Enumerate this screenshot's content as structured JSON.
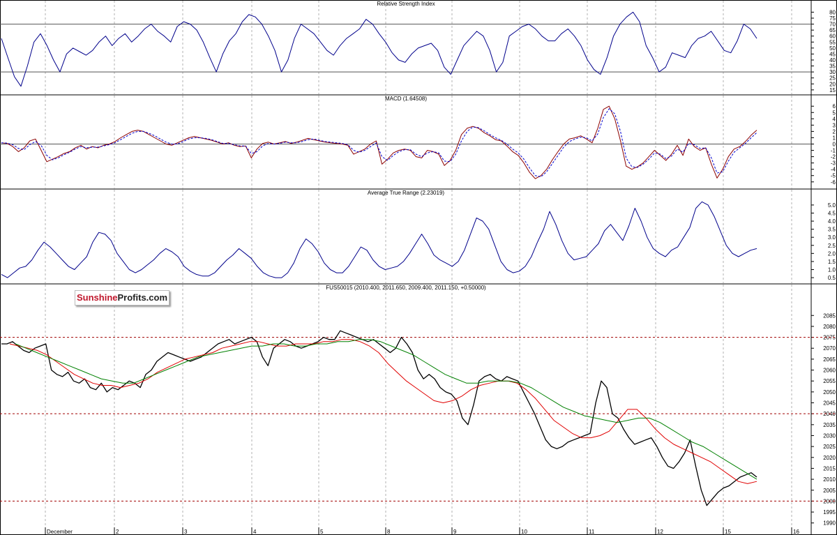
{
  "brand": {
    "part1": "Sunshine",
    "part2": "Profits.com"
  },
  "colors": {
    "rsi": "#00008b",
    "macd": "#8b0000",
    "signal": "#0000cd",
    "atr": "#00008b",
    "sma_fast": "#008000",
    "sma_slow": "#e00000",
    "candles": "#000000",
    "support_lines": "#a00000"
  },
  "chart_data": [
    {
      "type": "line",
      "title": "Relative Strength Index",
      "y_ticks": [
        "80",
        "75",
        "70",
        "65",
        "60",
        "55",
        "50",
        "45",
        "40",
        "35",
        "30",
        "25",
        "20",
        "15"
      ],
      "ylim": [
        12,
        82
      ],
      "reference_levels": [
        70,
        30
      ],
      "series": [
        {
          "values": [
            58,
            42,
            26,
            18,
            35,
            55,
            62,
            52,
            40,
            30,
            45,
            50,
            47,
            44,
            48,
            55,
            60,
            52,
            58,
            62,
            55,
            60,
            66,
            70,
            64,
            60,
            55,
            68,
            72,
            70,
            65,
            55,
            42,
            30,
            45,
            56,
            62,
            72,
            78,
            76,
            70,
            60,
            48,
            30,
            40,
            58,
            70,
            66,
            62,
            55,
            48,
            44,
            52,
            58,
            62,
            66,
            74,
            70,
            62,
            55,
            46,
            40,
            38,
            45,
            50,
            52,
            54,
            48,
            34,
            28,
            40,
            52,
            58,
            64,
            60,
            48,
            30,
            38,
            60,
            64,
            68,
            70,
            66,
            60,
            56,
            56,
            62,
            66,
            60,
            52,
            40,
            32,
            28,
            42,
            60,
            70,
            76,
            80,
            72,
            52,
            42,
            30,
            34,
            46,
            44,
            42,
            52,
            58,
            60,
            64,
            56,
            48,
            46,
            56,
            70,
            66,
            58
          ]
        }
      ]
    },
    {
      "type": "line",
      "title": "MACD (1.64508)",
      "y_ticks": [
        "6",
        "5",
        "4",
        "3",
        "2",
        "1",
        "0",
        "-1",
        "-2",
        "-3",
        "-4",
        "-5",
        "-6"
      ],
      "ylim": [
        -6.8,
        6.8
      ],
      "reference_levels": [
        0
      ],
      "series": [
        {
          "values": [
            0.2,
            0.1,
            -0.4,
            -1.2,
            -0.6,
            0.5,
            0.8,
            -1.0,
            -2.8,
            -2.4,
            -2.0,
            -1.5,
            -1.2,
            -0.6,
            -0.2,
            -0.8,
            -0.4,
            -0.6,
            -0.2,
            0.0,
            0.4,
            1.0,
            1.5,
            2.0,
            2.2,
            2.0,
            1.5,
            1.0,
            0.5,
            0.0,
            -0.2,
            0.2,
            0.6,
            1.0,
            1.2,
            1.0,
            0.8,
            0.6,
            0.3,
            0.0,
            0.2,
            -0.2,
            -0.4,
            -0.3,
            -2.2,
            -0.8,
            0.1,
            0.3,
            0.0,
            0.2,
            0.4,
            0.1,
            0.3,
            0.6,
            0.9,
            0.7,
            0.5,
            0.3,
            0.2,
            0.1,
            0.0,
            -0.2,
            -1.6,
            -1.2,
            -0.8,
            0.0,
            0.5,
            -3.2,
            -2.4,
            -1.4,
            -1.0,
            -0.8,
            -1.0,
            -2.0,
            -2.2,
            -1.0,
            -1.2,
            -1.6,
            -3.4,
            -2.6,
            -1.0,
            1.5,
            2.5,
            2.8,
            2.5,
            1.8,
            1.3,
            0.7,
            0.5,
            -0.3,
            -1.2,
            -1.8,
            -3.0,
            -4.5,
            -5.5,
            -5.0,
            -4.0,
            -2.5,
            -1.2,
            0.0,
            0.8,
            1.0,
            1.3,
            0.8,
            0.2,
            2.5,
            5.5,
            6.0,
            4.0,
            0.5,
            -3.5,
            -4.0,
            -3.6,
            -3.0,
            -2.0,
            -1.0,
            -1.8,
            -2.6,
            -1.6,
            -0.2,
            -1.8,
            0.8,
            -0.4,
            -1.0,
            -0.6,
            -3.2,
            -5.4,
            -4.0,
            -2.0,
            -0.8,
            -0.4,
            0.4,
            1.4,
            2.2
          ]
        },
        {
          "values": [
            0.2,
            0.15,
            -0.1,
            -0.7,
            -0.9,
            -0.1,
            0.4,
            -0.2,
            -1.8,
            -2.5,
            -2.2,
            -1.7,
            -1.3,
            -0.8,
            -0.4,
            -0.6,
            -0.5,
            -0.5,
            -0.3,
            -0.1,
            0.2,
            0.7,
            1.2,
            1.7,
            2.0,
            2.0,
            1.7,
            1.3,
            0.8,
            0.3,
            0.0,
            0.0,
            0.4,
            0.8,
            1.0,
            1.0,
            0.9,
            0.7,
            0.4,
            0.1,
            0.1,
            -0.1,
            -0.3,
            -0.3,
            -1.5,
            -1.2,
            -0.3,
            0.1,
            0.0,
            0.1,
            0.3,
            0.2,
            0.2,
            0.4,
            0.7,
            0.8,
            0.6,
            0.4,
            0.3,
            0.2,
            0.1,
            -0.1,
            -1.0,
            -1.3,
            -1.0,
            -0.4,
            0.2,
            -2.0,
            -2.6,
            -1.8,
            -1.2,
            -0.9,
            -0.9,
            -1.6,
            -2.0,
            -1.4,
            -1.2,
            -1.4,
            -2.7,
            -2.8,
            -1.6,
            0.5,
            2.0,
            2.7,
            2.6,
            2.1,
            1.5,
            1.0,
            0.6,
            0.0,
            -0.8,
            -1.4,
            -2.4,
            -3.8,
            -5.0,
            -5.2,
            -4.4,
            -3.1,
            -1.8,
            -0.5,
            0.4,
            0.8,
            1.1,
            1.0,
            0.5,
            1.6,
            4.2,
            5.6,
            4.8,
            2.0,
            -2.2,
            -3.6,
            -3.7,
            -3.2,
            -2.4,
            -1.4,
            -1.6,
            -2.3,
            -1.9,
            -0.8,
            -1.3,
            0.1,
            -0.1,
            -0.7,
            -0.6,
            -2.2,
            -4.6,
            -4.4,
            -2.7,
            -1.3,
            -0.6,
            0.1,
            1.0,
            1.8
          ]
        }
      ]
    },
    {
      "type": "line",
      "title": "Average True Range (2.23019)",
      "y_ticks": [
        "5.0",
        "4.5",
        "4.0",
        "3.5",
        "3.0",
        "2.5",
        "2.0",
        "1.5",
        "1.0",
        "0.5"
      ],
      "ylim": [
        0.2,
        5.6
      ],
      "series": [
        {
          "values": [
            0.7,
            0.5,
            0.8,
            1.1,
            1.2,
            1.6,
            2.2,
            2.7,
            2.4,
            2.0,
            1.6,
            1.2,
            1.0,
            1.4,
            1.8,
            2.7,
            3.3,
            3.2,
            2.8,
            2.0,
            1.5,
            1.0,
            0.8,
            1.0,
            1.3,
            1.6,
            2.0,
            2.3,
            2.1,
            1.8,
            1.2,
            0.9,
            0.7,
            0.6,
            0.6,
            0.8,
            1.2,
            1.6,
            1.9,
            2.3,
            2.0,
            1.7,
            1.2,
            0.8,
            0.6,
            0.5,
            0.5,
            0.8,
            1.4,
            2.3,
            2.9,
            2.6,
            2.1,
            1.4,
            1.0,
            0.8,
            0.8,
            1.2,
            1.8,
            2.4,
            2.2,
            1.6,
            1.2,
            1.0,
            1.1,
            1.2,
            1.5,
            2.0,
            2.6,
            3.2,
            2.6,
            1.9,
            1.6,
            1.4,
            1.2,
            1.5,
            2.2,
            3.2,
            4.2,
            4.0,
            3.5,
            2.5,
            1.5,
            1.0,
            0.8,
            0.9,
            1.2,
            1.8,
            2.7,
            3.5,
            4.6,
            3.8,
            2.8,
            2.0,
            1.6,
            1.7,
            1.8,
            2.2,
            2.6,
            3.4,
            3.8,
            3.3,
            2.8,
            3.7,
            4.8,
            4.0,
            3.0,
            2.3,
            2.0,
            1.8,
            2.2,
            2.4,
            3.0,
            3.6,
            4.8,
            5.2,
            5.0,
            4.3,
            3.4,
            2.5,
            2.0,
            1.8,
            2.0,
            2.2,
            2.3
          ]
        }
      ]
    },
    {
      "type": "line",
      "title": "FUS50015 (2010.400, 2011.650, 2009.400, 2011.150, +0.50000)",
      "y_ticks": [
        "2085",
        "2080",
        "2075",
        "2070",
        "2065",
        "2060",
        "2055",
        "2050",
        "2045",
        "2040",
        "2035",
        "2030",
        "2025",
        "2020",
        "2015",
        "2010",
        "2005",
        "2000",
        "1995",
        "1990"
      ],
      "x_ticks": [
        "December",
        "2",
        "3",
        "4",
        "5",
        "8",
        "9",
        "10",
        "11",
        "12",
        "15",
        "16"
      ],
      "ylim": [
        1988,
        2087
      ],
      "reference_levels": [
        2075,
        2040,
        2000
      ],
      "series": [
        {
          "values": [
            2072,
            2072,
            2073,
            2071,
            2069,
            2068,
            2070,
            2071,
            2072,
            2060,
            2058,
            2057,
            2059,
            2055,
            2054,
            2056,
            2052,
            2051,
            2054,
            2050,
            2052,
            2051,
            2053,
            2055,
            2054,
            2052,
            2058,
            2060,
            2064,
            2066,
            2068,
            2067,
            2066,
            2065,
            2064,
            2065,
            2066,
            2068,
            2070,
            2072,
            2073,
            2074,
            2072,
            2073,
            2074,
            2075,
            2073,
            2066,
            2062,
            2070,
            2072,
            2074,
            2073,
            2071,
            2070,
            2071,
            2072,
            2073,
            2075,
            2074,
            2074,
            2078,
            2077,
            2076,
            2075,
            2074,
            2073,
            2074,
            2072,
            2070,
            2068,
            2070,
            2075,
            2072,
            2068,
            2060,
            2056,
            2058,
            2056,
            2052,
            2050,
            2049,
            2046,
            2038,
            2035,
            2044,
            2055,
            2057,
            2058,
            2056,
            2055,
            2057,
            2056,
            2055,
            2050,
            2045,
            2040,
            2034,
            2028,
            2025,
            2024,
            2025,
            2027,
            2028,
            2029,
            2030,
            2031,
            2045,
            2055,
            2052,
            2040,
            2038,
            2033,
            2029,
            2026,
            2027,
            2028,
            2029,
            2025,
            2020,
            2016,
            2015,
            2018,
            2022,
            2028,
            2016,
            2005,
            1998,
            2001,
            2004,
            2006,
            2007,
            2009,
            2011,
            2012,
            2013,
            2011
          ]
        },
        {
          "values": [
            2072,
            2071,
            2070,
            2069,
            2067,
            2064,
            2061,
            2058,
            2056,
            2054,
            2053,
            2053,
            2052,
            2053,
            2054,
            2056,
            2059,
            2061,
            2063,
            2065,
            2066,
            2067,
            2068,
            2070,
            2071,
            2072,
            2073,
            2073,
            2072,
            2071,
            2071,
            2072,
            2072,
            2072,
            2073,
            2073,
            2074,
            2074,
            2073,
            2071,
            2068,
            2063,
            2059,
            2055,
            2052,
            2049,
            2046,
            2045,
            2046,
            2048,
            2051,
            2053,
            2054,
            2055,
            2055,
            2054,
            2051,
            2047,
            2042,
            2037,
            2034,
            2031,
            2029,
            2029,
            2030,
            2032,
            2037,
            2042,
            2042,
            2038,
            2033,
            2029,
            2026,
            2024,
            2022,
            2020,
            2018,
            2015,
            2012,
            2009,
            2008,
            2009
          ]
        },
        {
          "values": [
            2072,
            2070,
            2068,
            2066,
            2064,
            2062,
            2060,
            2058,
            2056,
            2055,
            2054,
            2054,
            2056,
            2058,
            2060,
            2062,
            2064,
            2066,
            2067,
            2068,
            2069,
            2070,
            2071,
            2071,
            2072,
            2072,
            2071,
            2071,
            2072,
            2072,
            2073,
            2073,
            2074,
            2074,
            2073,
            2071,
            2069,
            2067,
            2064,
            2061,
            2058,
            2056,
            2054,
            2054,
            2055,
            2055,
            2055,
            2054,
            2052,
            2049,
            2046,
            2043,
            2041,
            2039,
            2038,
            2037,
            2036,
            2037,
            2038,
            2038,
            2036,
            2033,
            2030,
            2027,
            2025,
            2022,
            2019,
            2016,
            2013,
            2010
          ]
        }
      ]
    }
  ]
}
